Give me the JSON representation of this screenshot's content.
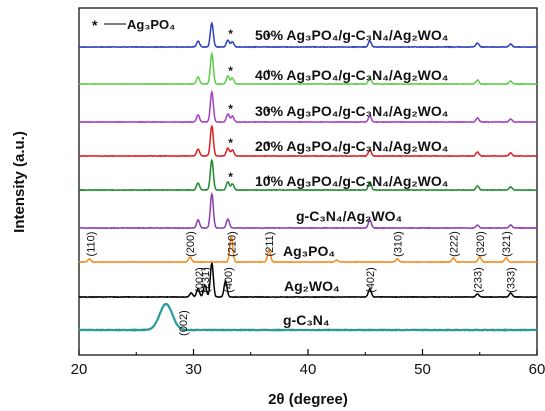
{
  "chart_data": {
    "type": "line",
    "xlabel": "2θ (degree)",
    "ylabel": "Intensity (a.u.)",
    "xlim": [
      20,
      60
    ],
    "x_ticks": [
      "20",
      "30",
      "40",
      "50",
      "60"
    ],
    "grid": false,
    "legend": {
      "marker": "*",
      "text": "Ag₃PO₄",
      "placement": "top-left"
    },
    "series": [
      {
        "name": "g-C₃N₄",
        "color": "#2a9a9a",
        "peaks": [
          [
            27.6,
            26
          ],
          [
            13.0,
            3
          ]
        ]
      },
      {
        "name": "Ag₂WO₄",
        "color": "#000000",
        "peaks": [
          [
            29.8,
            4
          ],
          [
            30.4,
            8
          ],
          [
            31.0,
            12
          ],
          [
            31.6,
            34
          ],
          [
            32.8,
            16
          ],
          [
            45.4,
            8
          ],
          [
            54.8,
            3
          ],
          [
            57.7,
            4
          ]
        ]
      },
      {
        "name": "Ag₃PO₄",
        "color": "#f58a1f",
        "peaks": [
          [
            20.9,
            3
          ],
          [
            29.7,
            5
          ],
          [
            33.3,
            26
          ],
          [
            36.6,
            12
          ],
          [
            42.5,
            2
          ],
          [
            47.8,
            3
          ],
          [
            52.7,
            4
          ],
          [
            55.0,
            5
          ],
          [
            57.3,
            4
          ]
        ]
      },
      {
        "name": "g-C₃N₄/Ag₂WO₄",
        "color": "#8b3fb0",
        "peaks": [
          [
            30.4,
            8
          ],
          [
            31.6,
            34
          ],
          [
            33.0,
            9
          ],
          [
            45.4,
            8
          ],
          [
            54.8,
            3
          ],
          [
            57.7,
            3
          ]
        ]
      },
      {
        "name": "10% Ag₃PO₄/g-C₃N₄/Ag₂WO₄",
        "color": "#1e8a2e",
        "peaks": [
          [
            30.4,
            7
          ],
          [
            31.6,
            30
          ],
          [
            33.0,
            8
          ],
          [
            33.4,
            6
          ],
          [
            45.4,
            8
          ],
          [
            54.8,
            4
          ],
          [
            57.7,
            3
          ]
        ]
      },
      {
        "name": "20% Ag₃PO₄/g-C₃N₄/Ag₂WO₄",
        "color": "#e02020",
        "peaks": [
          [
            30.4,
            7
          ],
          [
            31.6,
            30
          ],
          [
            33.0,
            8
          ],
          [
            33.4,
            6
          ],
          [
            45.4,
            6
          ],
          [
            54.8,
            4
          ],
          [
            57.7,
            3
          ]
        ]
      },
      {
        "name": "30% Ag₃PO₄/g-C₃N₄/Ag₂WO₄",
        "color": "#a33fc4",
        "peaks": [
          [
            30.4,
            7
          ],
          [
            31.6,
            30
          ],
          [
            33.0,
            8
          ],
          [
            33.4,
            6
          ],
          [
            45.4,
            6
          ],
          [
            54.8,
            4
          ],
          [
            57.7,
            3
          ]
        ]
      },
      {
        "name": "40% Ag₃PO₄/g-C₃N₄/Ag₂WO₄",
        "color": "#5ecb4a",
        "peaks": [
          [
            30.4,
            7
          ],
          [
            31.6,
            30
          ],
          [
            33.0,
            8
          ],
          [
            33.4,
            6
          ],
          [
            45.4,
            6
          ],
          [
            54.8,
            4
          ],
          [
            57.7,
            3
          ]
        ]
      },
      {
        "name": "50% Ag₃PO₄/g-C₃N₄/Ag₂WO₄",
        "color": "#2b3fbf",
        "peaks": [
          [
            30.4,
            6
          ],
          [
            31.6,
            24
          ],
          [
            33.0,
            7
          ],
          [
            33.4,
            5
          ],
          [
            45.4,
            6
          ],
          [
            54.8,
            4
          ],
          [
            57.7,
            3
          ]
        ]
      }
    ],
    "star_markers": [
      {
        "series": "10% Ag₃PO₄/g-C₃N₄/Ag₂WO₄",
        "x": [
          33.3,
          36.6
        ]
      },
      {
        "series": "20% Ag₃PO₄/g-C₃N₄/Ag₂WO₄",
        "x": [
          33.3,
          36.6
        ]
      },
      {
        "series": "30% Ag₃PO₄/g-C₃N₄/Ag₂WO₄",
        "x": [
          33.3,
          36.6
        ]
      },
      {
        "series": "40% Ag₃PO₄/g-C₃N₄/Ag₂WO₄",
        "x": [
          33.3,
          36.6
        ]
      },
      {
        "series": "50% Ag₃PO₄/g-C₃N₄/Ag₂WO₄",
        "x": [
          33.3,
          36.6
        ]
      }
    ],
    "hkl_ag3po4": [
      {
        "text": "(110)",
        "x": 21.0
      },
      {
        "text": "(200)",
        "x": 29.7
      },
      {
        "text": "(210)",
        "x": 33.3
      },
      {
        "text": "(211)",
        "x": 36.6
      },
      {
        "text": "(310)",
        "x": 47.8
      },
      {
        "text": "(222)",
        "x": 52.7
      },
      {
        "text": "(320)",
        "x": 55.0
      },
      {
        "text": "(321)",
        "x": 57.3
      }
    ],
    "hkl_ag2wo4": [
      {
        "text": "(002)",
        "x": 30.5
      },
      {
        "text": "(231)",
        "x": 31.0
      },
      {
        "text": "(400)",
        "x": 33.0
      },
      {
        "text": "(402)",
        "x": 45.4
      },
      {
        "text": "(233)",
        "x": 54.8
      },
      {
        "text": "(333)",
        "x": 57.7
      }
    ],
    "hkl_gc3n4": [
      {
        "text": "(002)",
        "x": 29.1
      }
    ]
  }
}
